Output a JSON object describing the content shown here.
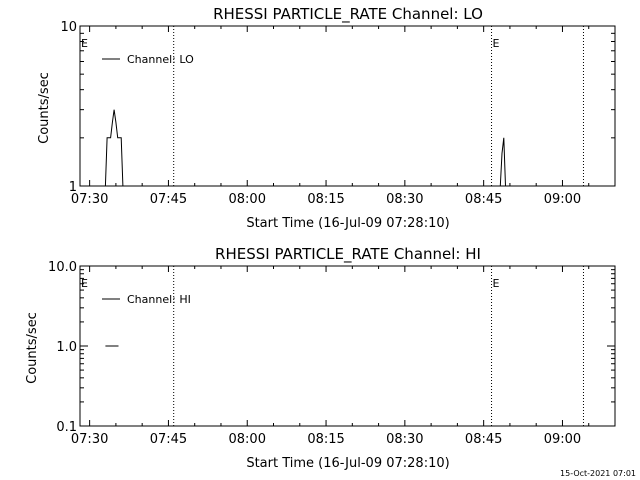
{
  "chart_data": [
    {
      "type": "line",
      "title": "RHESSI PARTICLE_RATE Channel: LO",
      "xlabel": "Start Time (16-Jul-09 07:28:10)",
      "ylabel": "Counts/sec",
      "yscale": "log",
      "ylim": [
        1,
        10
      ],
      "ytick_values": [
        1,
        10
      ],
      "ytick_labels": [
        "1",
        "10"
      ],
      "xlim": [
        "07:28:10",
        "09:10:00"
      ],
      "xtick_labels": [
        "07:30",
        "07:45",
        "08:00",
        "08:15",
        "08:30",
        "08:45",
        "09:00"
      ],
      "legend": {
        "placement": "top-left",
        "entries": [
          "Channel: LO"
        ]
      },
      "vertical_lines": [
        "07:46:00",
        "08:46:30",
        "09:04:00"
      ],
      "markers": [
        {
          "label": "E",
          "time": "07:28:10"
        },
        {
          "label": "E",
          "time": "08:46:30"
        }
      ],
      "series": [
        {
          "name": "Channel: LO",
          "points": [
            [
              "07:33:00",
              1
            ],
            [
              "07:33:20",
              2
            ],
            [
              "07:34:00",
              2
            ],
            [
              "07:34:20",
              2.5
            ],
            [
              "07:34:40",
              3
            ],
            [
              "07:35:00",
              2.5
            ],
            [
              "07:35:20",
              2
            ],
            [
              "07:36:00",
              2
            ],
            [
              "07:36:20",
              1
            ],
            [
              "08:48:00",
              null
            ],
            [
              "08:48:10",
              1
            ],
            [
              "08:48:30",
              1.6
            ],
            [
              "08:48:50",
              2
            ],
            [
              "08:49:10",
              1
            ]
          ]
        }
      ]
    },
    {
      "type": "line",
      "title": "RHESSI PARTICLE_RATE Channel: HI",
      "xlabel": "Start Time (16-Jul-09 07:28:10)",
      "ylabel": "Counts/sec",
      "yscale": "log",
      "ylim": [
        0.1,
        10
      ],
      "ytick_values": [
        0.1,
        1,
        10
      ],
      "ytick_labels": [
        "0.1",
        "1.0",
        "10.0"
      ],
      "xlim": [
        "07:28:10",
        "09:10:00"
      ],
      "xtick_labels": [
        "07:30",
        "07:45",
        "08:00",
        "08:15",
        "08:30",
        "08:45",
        "09:00"
      ],
      "legend": {
        "placement": "top-left",
        "entries": [
          "Channel: HI"
        ]
      },
      "vertical_lines": [
        "07:46:00",
        "08:46:30",
        "09:04:00"
      ],
      "markers": [
        {
          "label": "E",
          "time": "07:28:10"
        },
        {
          "label": "E",
          "time": "08:46:30"
        }
      ],
      "series": [
        {
          "name": "Channel: HI",
          "points": [
            [
              "07:33:00",
              1
            ],
            [
              "07:35:30",
              1
            ]
          ]
        }
      ]
    }
  ],
  "footer": {
    "timestamp": "15-Oct-2021 07:01"
  }
}
